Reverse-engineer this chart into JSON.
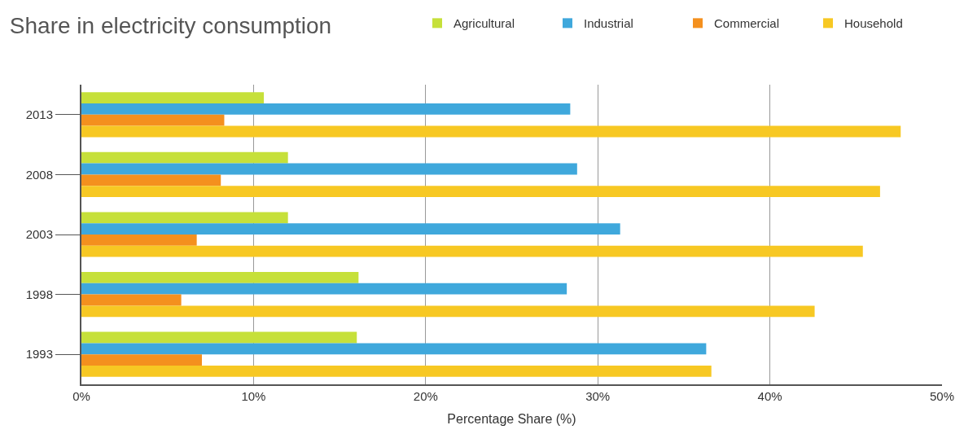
{
  "chart_data": {
    "type": "bar",
    "orientation": "horizontal",
    "title": "Share in electricity consumption",
    "xlabel": "Percentage Share (%)",
    "categories": [
      "2013",
      "2008",
      "2003",
      "1998",
      "1993"
    ],
    "series": [
      {
        "name": "Agricultural",
        "color": "#c6e03a",
        "values": [
          10.6,
          12.0,
          12.0,
          16.1,
          16.0
        ]
      },
      {
        "name": "Industrial",
        "color": "#3fa8dc",
        "values": [
          28.4,
          28.8,
          31.3,
          28.2,
          36.3
        ]
      },
      {
        "name": "Commercial",
        "color": "#f4901e",
        "values": [
          8.3,
          8.1,
          6.7,
          5.8,
          7.0
        ]
      },
      {
        "name": "Household",
        "color": "#f7c823",
        "values": [
          47.6,
          46.4,
          45.4,
          42.6,
          36.6
        ]
      }
    ],
    "xlim": [
      0,
      50
    ],
    "xticks": [
      {
        "value": 0,
        "label": "0%"
      },
      {
        "value": 10,
        "label": "10%"
      },
      {
        "value": 20,
        "label": "20%"
      },
      {
        "value": 30,
        "label": "30%"
      },
      {
        "value": 40,
        "label": "40%"
      },
      {
        "value": 50,
        "label": "50%"
      }
    ],
    "grid": "x",
    "legend": "top right"
  }
}
